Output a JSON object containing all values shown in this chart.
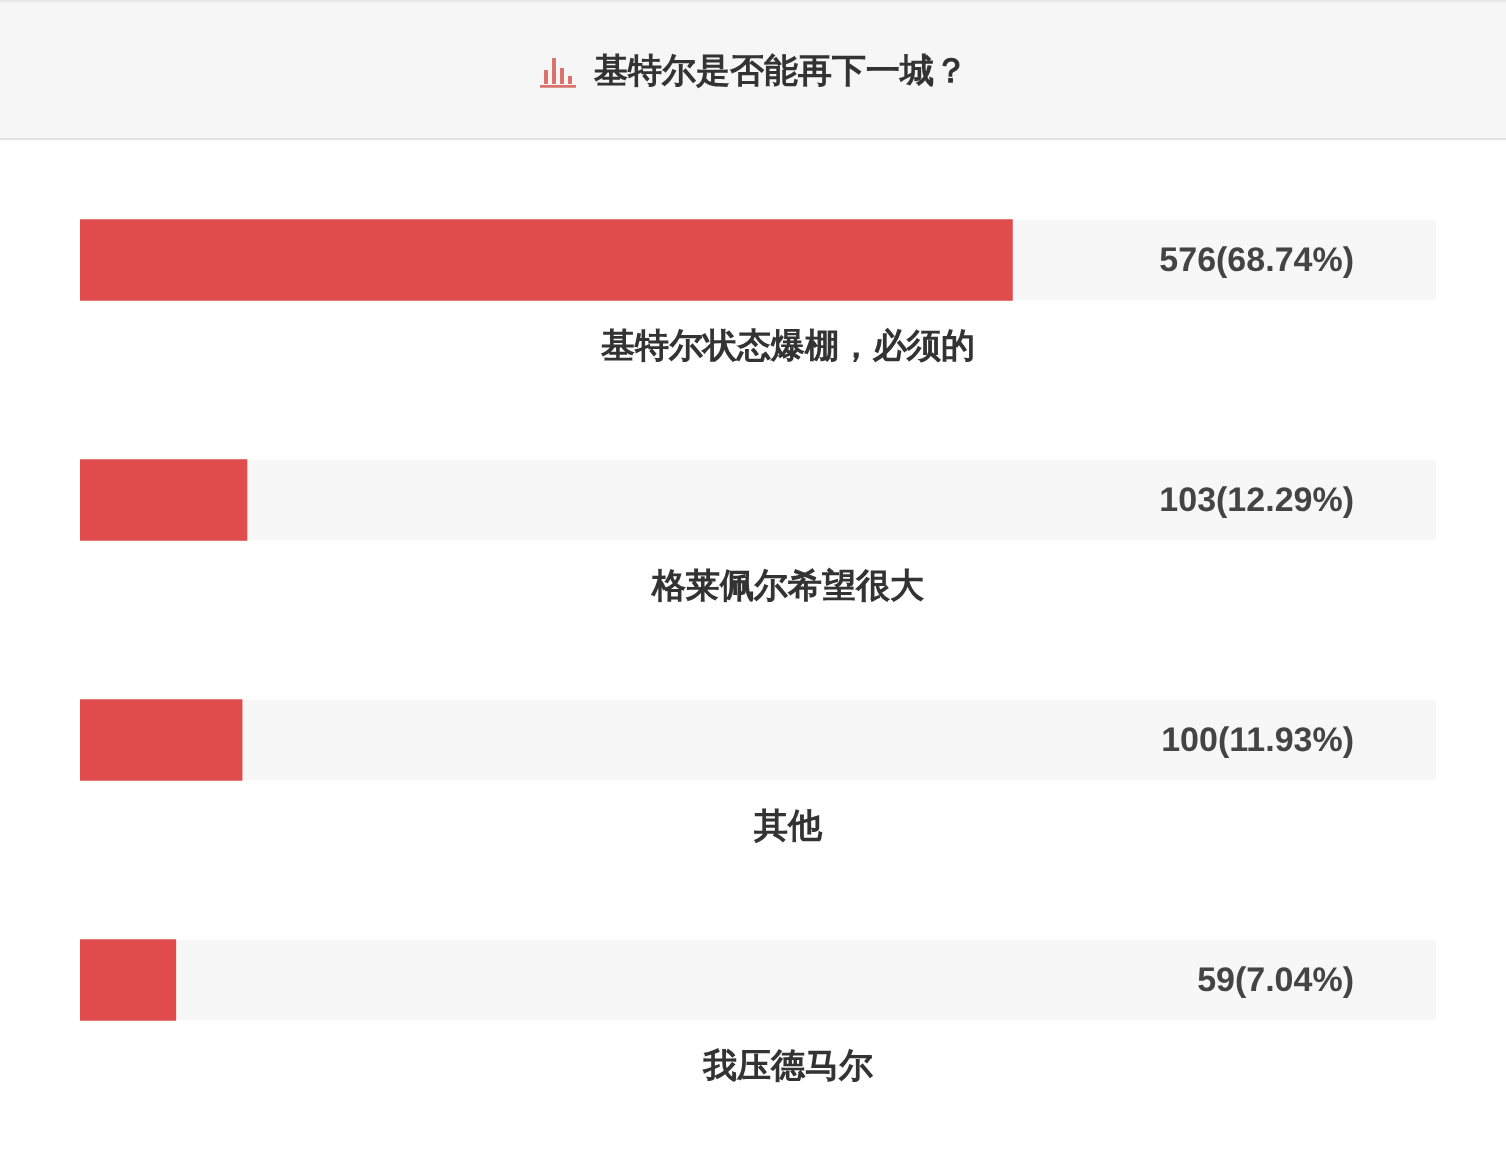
{
  "chart_data": {
    "type": "bar",
    "orientation": "horizontal",
    "title": "基特尔是否能再下一城？",
    "categories": [
      "基特尔状态爆棚，必须的",
      "格莱佩尔希望很大",
      "其他",
      "我压德马尔"
    ],
    "values": [
      68.74,
      12.29,
      11.93,
      7.04
    ],
    "value_labels": [
      "576(68.74%)",
      "103(12.29%)",
      "100(11.93%)",
      "59(7.04%)"
    ],
    "color": "#e04b4b",
    "xlim": [
      0,
      100
    ],
    "tick_labels": "y",
    "grid": false,
    "legend": false
  }
}
